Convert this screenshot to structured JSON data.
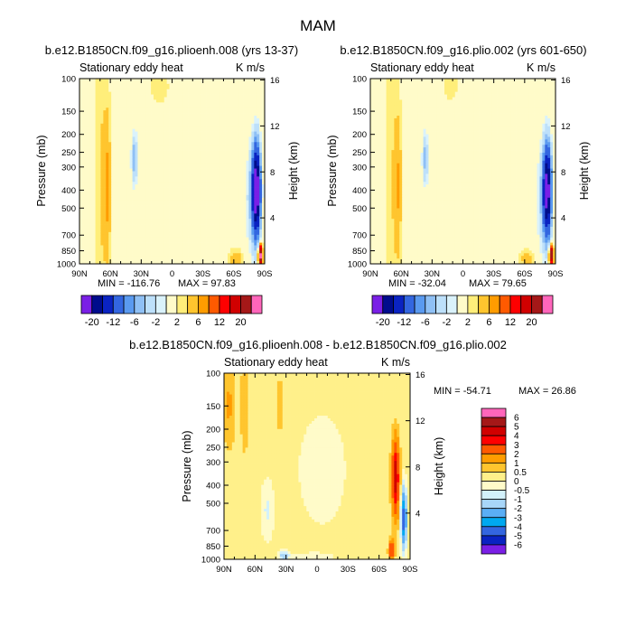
{
  "main_title": "MAM",
  "palettes": {
    "main": [
      "#7a1fe6",
      "#000c8c",
      "#0a23c2",
      "#3366e0",
      "#5a9af0",
      "#8fc0f5",
      "#bde0fa",
      "#daf2fb",
      "#fffbc9",
      "#ffee7a",
      "#ffc52e",
      "#ff9c00",
      "#ff5a00",
      "#ff0000",
      "#d10000",
      "#a51818",
      "#ff66bb"
    ],
    "diff": [
      "#7a1fe6",
      "#0a23c2",
      "#3366e0",
      "#00a8f0",
      "#5aaef5",
      "#a8d6f8",
      "#d3f1fb",
      "#fffbc9",
      "#fff08a",
      "#ffc52e",
      "#ff9c00",
      "#ff5a00",
      "#ff0000",
      "#d10000",
      "#a51818",
      "#ff66bb"
    ]
  },
  "chart_data": [
    {
      "type": "heatmap",
      "id": "p1",
      "title": "b.e12.B1850CN.f09_g16.plioenh.008 (yrs 13-37)",
      "subtitle_left": "Stationary eddy heat",
      "subtitle_right": "K m/s",
      "xlabel": "",
      "ylabel": "Pressure (mb)",
      "ylabel_right": "Height (km)",
      "x_ticks": [
        "90N",
        "60N",
        "30N",
        "0",
        "30S",
        "60S",
        "90S"
      ],
      "x_range": [
        90,
        -90
      ],
      "y_ticks": [
        "100",
        "150",
        "200",
        "250",
        "300",
        "400",
        "500",
        "700",
        "850",
        "1000"
      ],
      "y_range": [
        100,
        1000
      ],
      "height_ticks": [
        "16",
        "12",
        "8",
        "4"
      ],
      "height_km": [
        16,
        12,
        8,
        4
      ],
      "min_text": "MIN = -116.76",
      "max_text": "MAX = 97.83",
      "amp": 1.0,
      "levels": [
        -20,
        -16,
        -12,
        -8,
        -6,
        -4,
        -2,
        -1,
        1,
        2,
        4,
        6,
        8,
        12,
        16,
        20
      ]
    },
    {
      "type": "heatmap",
      "id": "p2",
      "title": "b.e12.B1850CN.f09_g16.plio.002 (yrs 601-650)",
      "subtitle_left": "Stationary eddy heat",
      "subtitle_right": "K m/s",
      "xlabel": "",
      "ylabel": "Pressure (mb)",
      "ylabel_right": "Height (km)",
      "x_ticks": [
        "90N",
        "60N",
        "30N",
        "0",
        "30S",
        "60S",
        "90S"
      ],
      "x_range": [
        90,
        -90
      ],
      "y_ticks": [
        "100",
        "150",
        "200",
        "250",
        "300",
        "400",
        "500",
        "700",
        "850",
        "1000"
      ],
      "y_range": [
        100,
        1000
      ],
      "height_ticks": [
        "16",
        "12",
        "8",
        "4"
      ],
      "height_km": [
        16,
        12,
        8,
        4
      ],
      "min_text": "MIN = -32.04",
      "max_text": "MAX = 79.65",
      "amp": 0.9,
      "levels": [
        -20,
        -16,
        -12,
        -8,
        -6,
        -4,
        -2,
        -1,
        1,
        2,
        4,
        6,
        8,
        12,
        16,
        20
      ]
    },
    {
      "type": "heatmap",
      "id": "p3",
      "title": "b.e12.B1850CN.f09_g16.plioenh.008 - b.e12.B1850CN.f09_g16.plio.002",
      "subtitle_left": "Stationary eddy heat",
      "subtitle_right": "K m/s",
      "xlabel": "",
      "ylabel": "Pressure (mb)",
      "ylabel_right": "Height (km)",
      "x_ticks": [
        "90N",
        "60N",
        "30N",
        "0",
        "30S",
        "60S",
        "90S"
      ],
      "x_range": [
        90,
        -90
      ],
      "y_ticks": [
        "100",
        "150",
        "200",
        "250",
        "300",
        "400",
        "500",
        "700",
        "850",
        "1000"
      ],
      "y_range": [
        100,
        1000
      ],
      "height_ticks": [
        "16",
        "12",
        "8",
        "4"
      ],
      "height_km": [
        16,
        12,
        8,
        4
      ],
      "min_text": "MIN = -54.71",
      "max_text": "MAX =  26.86",
      "levels": [
        -6,
        -5,
        -4,
        -3,
        -2,
        -1,
        -0.5,
        0,
        0.5,
        1,
        2,
        3,
        4,
        5,
        6
      ]
    }
  ],
  "colorbars": {
    "horizontal": {
      "labels": [
        "-20",
        "-12",
        "-6",
        "-2",
        "2",
        "6",
        "12",
        "20"
      ]
    },
    "vertical": {
      "labels": [
        "6",
        "5",
        "4",
        "3",
        "2",
        "1",
        "0.5",
        "0",
        "-0.5",
        "-1",
        "-2",
        "-3",
        "-4",
        "-5",
        "-6"
      ]
    }
  }
}
